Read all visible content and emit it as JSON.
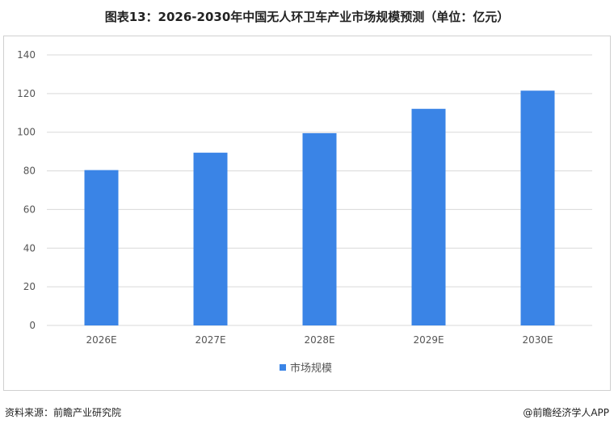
{
  "chart_data": {
    "type": "bar",
    "title": "图表13：2026-2030年中国无人环卫车产业市场规模预测（单位：亿元）",
    "categories": [
      "2026E",
      "2027E",
      "2028E",
      "2029E",
      "2030E"
    ],
    "series": [
      {
        "name": "市场规模",
        "values": [
          80.4,
          89.4,
          99.5,
          112.1,
          121.5
        ]
      }
    ],
    "ylim": [
      0,
      140
    ],
    "yticks": [
      0,
      20,
      40,
      60,
      80,
      100,
      120,
      140
    ],
    "grid": true,
    "legend": "bottom",
    "color": "#3a84e6"
  },
  "footer": {
    "source": "资料来源：前瞻产业研究院",
    "brand": "@前瞻经济学人APP"
  }
}
